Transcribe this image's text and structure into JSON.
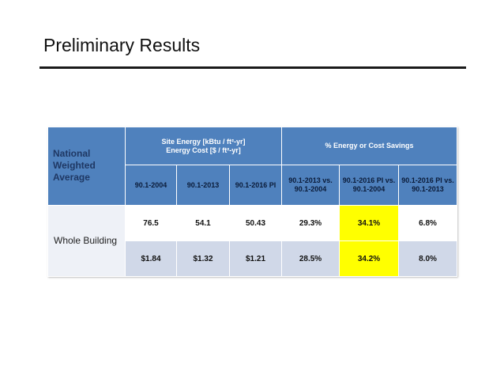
{
  "slide": {
    "title": "Preliminary Results"
  },
  "table": {
    "corner_label_lines": [
      "National",
      "Weighted",
      "Average"
    ],
    "group_site_energy": {
      "line1": "Site Energy [kBtu / ft²-yr]",
      "line2": "Energy Cost [$ / ft²-yr]"
    },
    "group_savings": "% Energy or Cost Savings",
    "sub_headers": [
      {
        "line1": "90.1-2004",
        "line2": ""
      },
      {
        "line1": "90.1-2013",
        "line2": ""
      },
      {
        "line1": "90.1-2016 PI",
        "line2": ""
      },
      {
        "line1": "90.1-2013 vs.",
        "line2": "90.1-2004"
      },
      {
        "line1": "90.1-2016 PI vs.",
        "line2": "90.1-2004"
      },
      {
        "line1": "90.1-2016 PI vs.",
        "line2": "90.1-2013"
      }
    ],
    "row_label": "Whole Building",
    "rows": [
      {
        "cells": [
          "76.5",
          "54.1",
          "50.43",
          "29.3%",
          "34.1%",
          "6.8%"
        ]
      },
      {
        "cells": [
          "$1.84",
          "$1.32",
          "$1.21",
          "28.5%",
          "34.2%",
          "8.0%"
        ]
      }
    ],
    "highlight_color": "#ffff00",
    "header_color": "#4f81bd",
    "row_alt_color": "#d0d8e8"
  }
}
